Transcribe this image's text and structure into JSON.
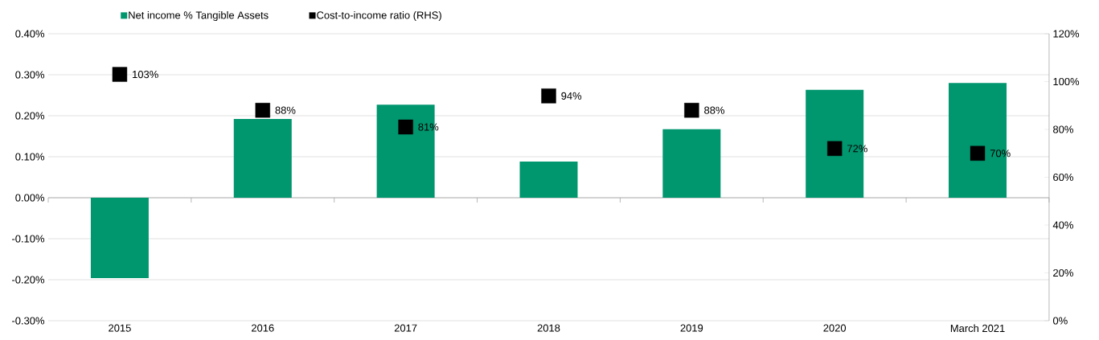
{
  "chart_data": {
    "type": "bar",
    "categories": [
      "2015",
      "2016",
      "2017",
      "2018",
      "2019",
      "2020",
      "March 2021"
    ],
    "series": [
      {
        "name": "Net income % Tangible Assets",
        "color": "#00966e",
        "values": [
          -0.196,
          0.192,
          0.227,
          0.088,
          0.167,
          0.263,
          0.28
        ]
      },
      {
        "name": "Cost-to-income ratio (RHS)",
        "type": "scatter",
        "axis": "y2",
        "color": "#000000",
        "values": [
          103,
          88,
          81,
          94,
          88,
          72,
          70
        ],
        "value_labels": [
          "103%",
          "88%",
          "81%",
          "94%",
          "88%",
          "72%",
          "70%"
        ]
      }
    ],
    "ylim": [
      -0.3,
      0.4
    ],
    "yticks": [
      {
        "value": -0.3,
        "label": "-0.30%"
      },
      {
        "value": -0.2,
        "label": "-0.20%"
      },
      {
        "value": -0.1,
        "label": "-0.10%"
      },
      {
        "value": 0,
        "label": "0.00%"
      },
      {
        "value": 0.1,
        "label": "0.10%"
      },
      {
        "value": 0.2,
        "label": "0.20%"
      },
      {
        "value": 0.3,
        "label": "0.30%"
      },
      {
        "value": 0.4,
        "label": "0.40%"
      }
    ],
    "y2lim": [
      0,
      120
    ],
    "y2ticks": [
      {
        "value": 0,
        "label": "0%"
      },
      {
        "value": 20,
        "label": "20%"
      },
      {
        "value": 40,
        "label": "40%"
      },
      {
        "value": 60,
        "label": "60%"
      },
      {
        "value": 80,
        "label": "80%"
      },
      {
        "value": 100,
        "label": "100%"
      },
      {
        "value": 120,
        "label": "120%"
      }
    ],
    "grid": "y",
    "legend": "top",
    "marker": "square"
  }
}
